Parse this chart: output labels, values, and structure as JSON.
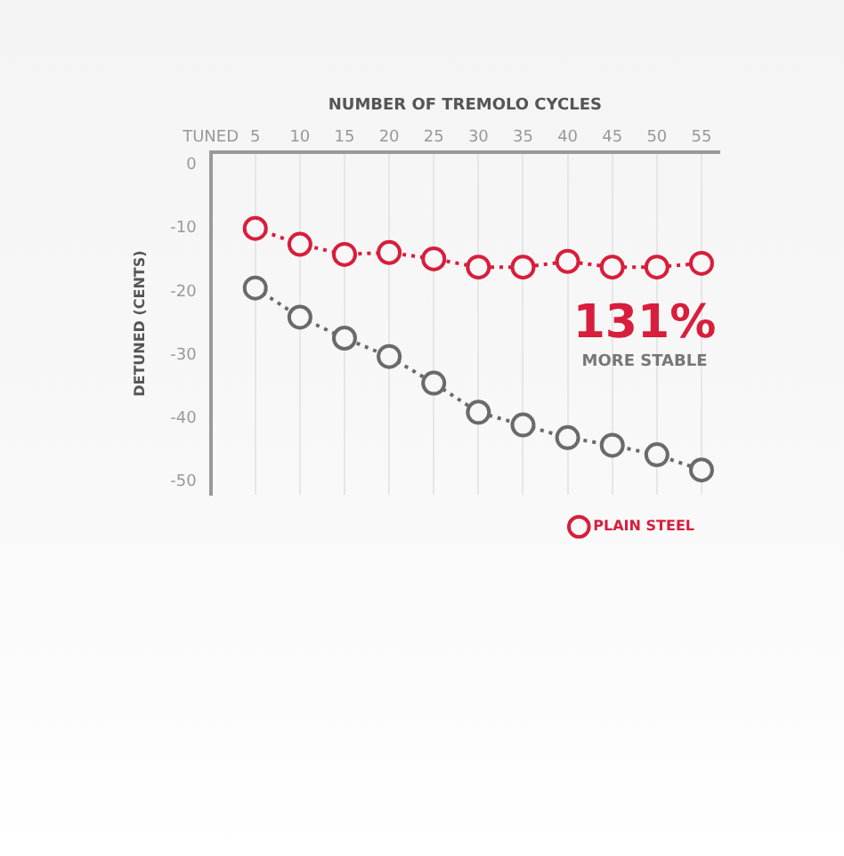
{
  "chart_data": {
    "type": "line",
    "xlabel": "NUMBER OF TREMOLO CYCLES",
    "ylabel": "DETUNED (CENTS)",
    "x": [
      5,
      10,
      15,
      20,
      25,
      30,
      35,
      40,
      45,
      50,
      55
    ],
    "series": [
      {
        "name": "PLAIN STEEL",
        "color": "#d81e3c",
        "values": [
          -10,
          -12.5,
          -14.1,
          -13.8,
          -14.8,
          -16.1,
          -16.1,
          -15.2,
          -16.1,
          -16.1,
          -15.5
        ]
      },
      {
        "color": "#6a6a6a",
        "values": [
          -19.4,
          -24,
          -27.3,
          -30.2,
          -34.4,
          -39,
          -41,
          -43,
          -44.2,
          -45.7,
          -48.1
        ]
      }
    ],
    "xlim": [
      0,
      57
    ],
    "xticks": [
      {
        "value": 0,
        "label": "TUNED"
      },
      5,
      10,
      15,
      20,
      25,
      30,
      35,
      40,
      45,
      50,
      55
    ],
    "ylim": [
      -52,
      2
    ],
    "yticks": [
      0,
      -10,
      -20,
      -30,
      -40,
      -50
    ],
    "grid": "x",
    "legend": "bottom right",
    "marker": "circle",
    "line_style": "dotted",
    "annotations": [
      "131%",
      "MORE STABLE"
    ]
  }
}
